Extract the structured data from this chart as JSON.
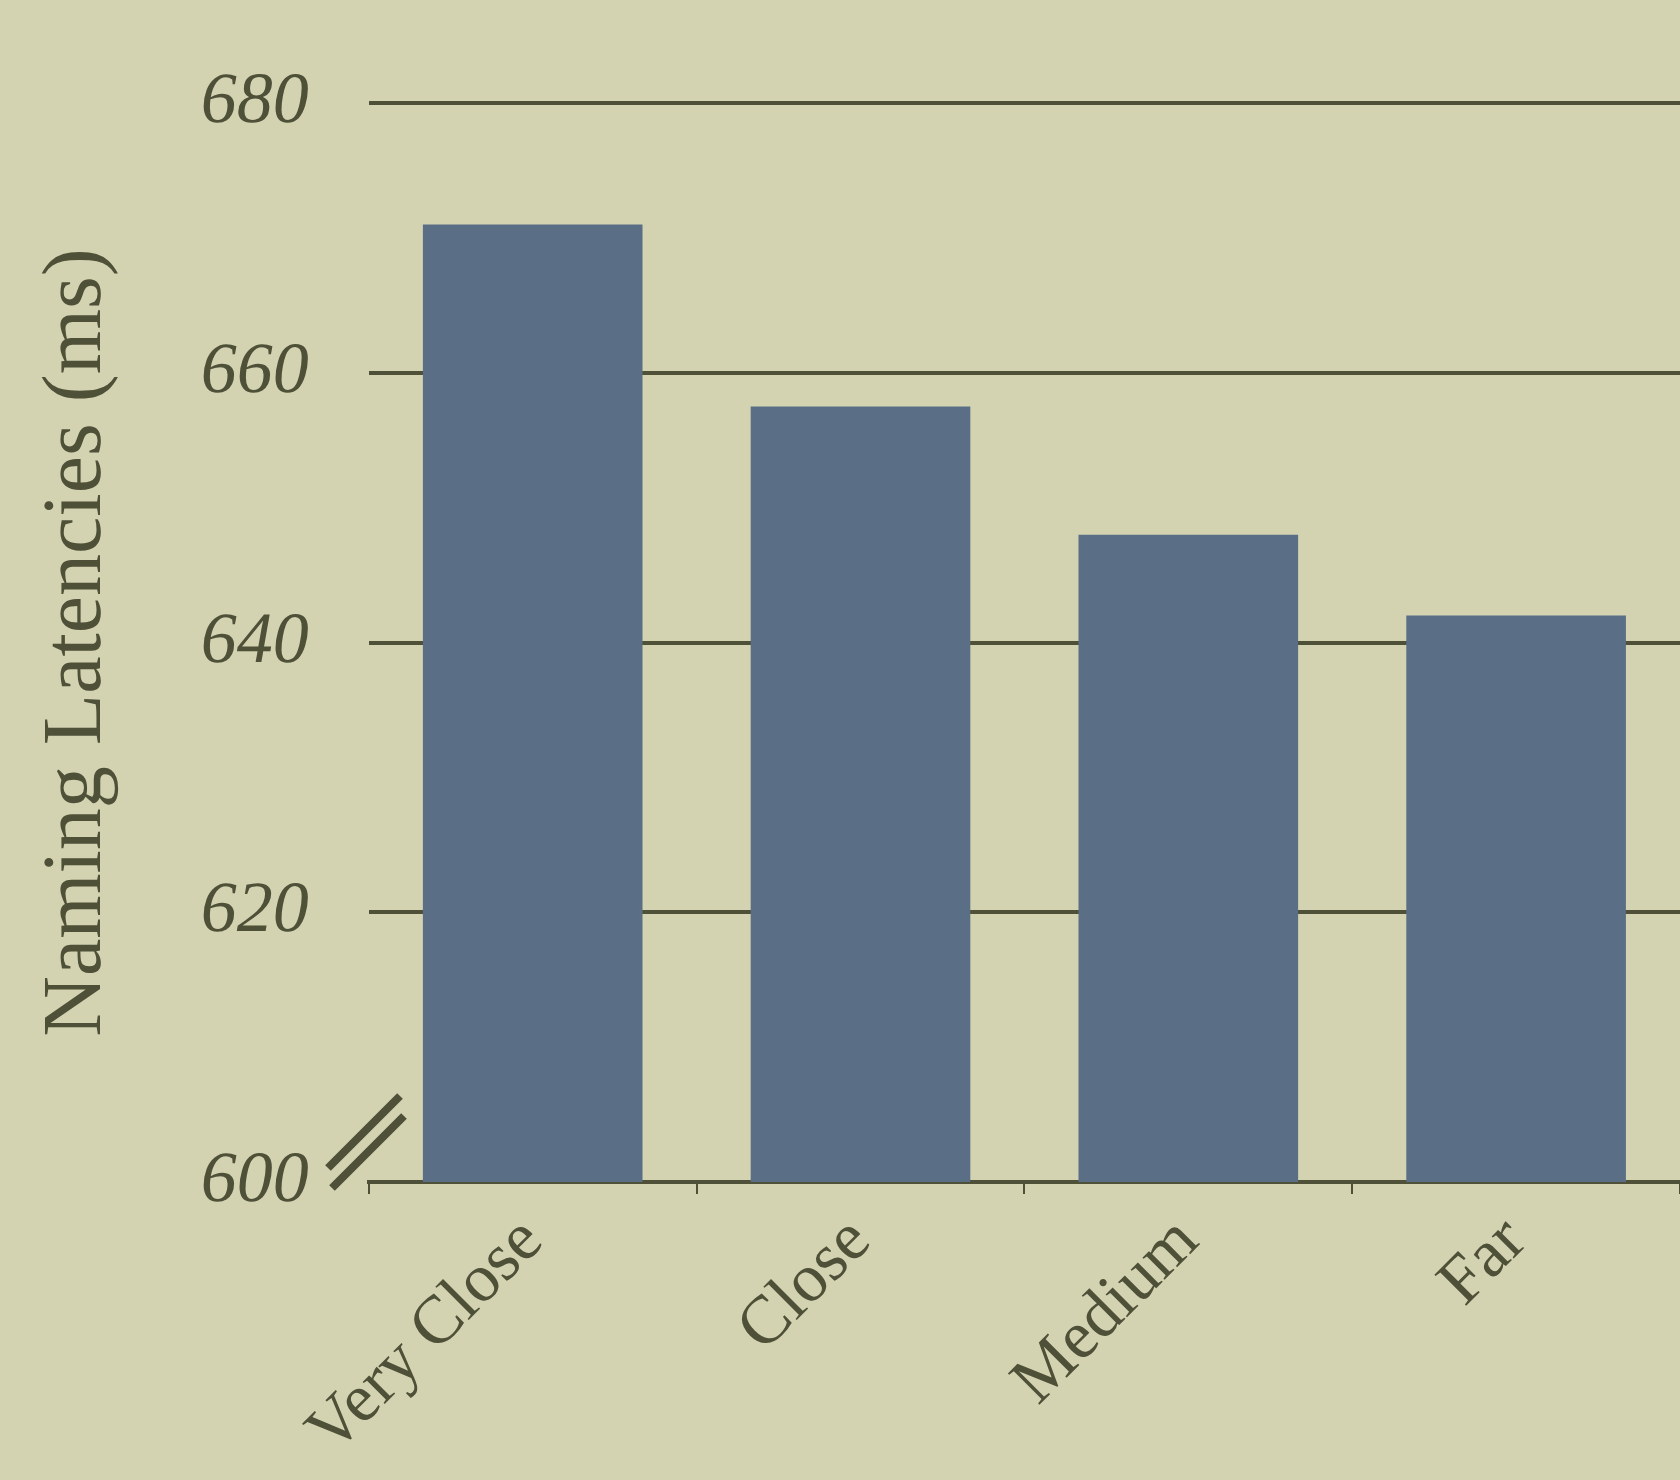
{
  "chart_data": {
    "type": "bar",
    "ylabel": "Naming Latencies (ms)",
    "categories": [
      "Very Close",
      "Close",
      "Medium",
      "Far"
    ],
    "values": [
      671,
      657.5,
      648,
      642
    ],
    "color": "#5a6e86",
    "ylim": [
      600,
      680
    ],
    "yticks": [
      600,
      620,
      640,
      660,
      680
    ],
    "grid": "y"
  }
}
